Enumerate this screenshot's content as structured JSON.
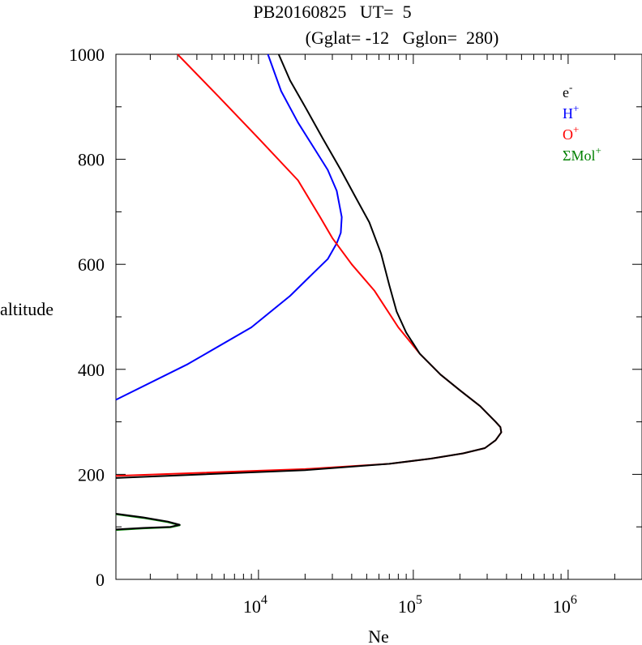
{
  "chart_data": {
    "type": "line",
    "title": "PB20160825   UT=  5",
    "subtitle": "(Gglat= -12   Gglon=  280)",
    "xlabel": "Ne",
    "ylabel": "altitude",
    "x_scale": "log",
    "xlim": [
      1200,
      3000000
    ],
    "ylim": [
      0,
      1000
    ],
    "x_ticks": [
      {
        "value": 10000,
        "base": "10",
        "exp": "4"
      },
      {
        "value": 100000,
        "base": "10",
        "exp": "5"
      },
      {
        "value": 1000000,
        "base": "10",
        "exp": "6"
      }
    ],
    "y_ticks": [
      {
        "value": 0,
        "label": "0"
      },
      {
        "value": 200,
        "label": "200"
      },
      {
        "value": 400,
        "label": "400"
      },
      {
        "value": 600,
        "label": "600"
      },
      {
        "value": 800,
        "label": "800"
      },
      {
        "value": 1000,
        "label": "1000"
      }
    ],
    "legend": {
      "placement": "top-right",
      "items": [
        {
          "base": "e",
          "sup": "-",
          "color": "#000000"
        },
        {
          "base": "H",
          "sup": "+",
          "color": "#0000ff"
        },
        {
          "base": "O",
          "sup": "+",
          "color": "#ff0000"
        },
        {
          "base": "ΣMol",
          "sup": "+",
          "color": "#008000"
        }
      ]
    },
    "series": [
      {
        "color": "#ff0000",
        "points": [
          [
            1200,
            197
          ],
          [
            20000,
            210
          ],
          [
            70000,
            220
          ],
          [
            130000,
            230
          ],
          [
            210000,
            240
          ],
          [
            290000,
            250
          ],
          [
            340000,
            265
          ],
          [
            370000,
            280
          ],
          [
            365000,
            290
          ],
          [
            340000,
            300
          ],
          [
            270000,
            330
          ],
          [
            200000,
            360
          ],
          [
            150000,
            390
          ],
          [
            110000,
            430
          ],
          [
            80000,
            480
          ],
          [
            56000,
            550
          ],
          [
            40000,
            600
          ],
          [
            30000,
            650
          ],
          [
            25000,
            690
          ],
          [
            18000,
            760
          ],
          [
            10000,
            840
          ],
          [
            5500,
            920
          ],
          [
            3000,
            1000
          ]
        ]
      },
      {
        "color": "#0000ff",
        "points": [
          [
            1200,
            342
          ],
          [
            3500,
            410
          ],
          [
            9000,
            480
          ],
          [
            16000,
            540
          ],
          [
            22000,
            580
          ],
          [
            28000,
            610
          ],
          [
            32000,
            640
          ],
          [
            34000,
            660
          ],
          [
            34500,
            690
          ],
          [
            32000,
            740
          ],
          [
            28000,
            780
          ],
          [
            23000,
            820
          ],
          [
            18000,
            870
          ],
          [
            14000,
            930
          ],
          [
            11500,
            1000
          ]
        ]
      },
      {
        "color": "#000000",
        "points": [
          [
            1200,
            193
          ],
          [
            20000,
            208
          ],
          [
            70000,
            220
          ],
          [
            130000,
            230
          ],
          [
            210000,
            240
          ],
          [
            290000,
            250
          ],
          [
            340000,
            265
          ],
          [
            370000,
            280
          ],
          [
            365000,
            290
          ],
          [
            340000,
            300
          ],
          [
            270000,
            330
          ],
          [
            200000,
            360
          ],
          [
            150000,
            390
          ],
          [
            110000,
            430
          ],
          [
            90000,
            470
          ],
          [
            78000,
            510
          ],
          [
            70000,
            560
          ],
          [
            62000,
            620
          ],
          [
            52000,
            680
          ],
          [
            42000,
            730
          ],
          [
            34000,
            780
          ],
          [
            26000,
            840
          ],
          [
            20000,
            900
          ],
          [
            16000,
            950
          ],
          [
            13500,
            1000
          ]
        ]
      },
      {
        "color": "#000000",
        "points": [
          [
            1200,
            125
          ],
          [
            1800,
            118
          ],
          [
            2600,
            110
          ],
          [
            3100,
            104
          ],
          [
            2700,
            100
          ],
          [
            1800,
            98
          ],
          [
            1200,
            95
          ]
        ]
      },
      {
        "color": "#008000",
        "points": [
          [
            1200,
            124
          ],
          [
            1800,
            117
          ],
          [
            2600,
            109
          ],
          [
            3100,
            103
          ],
          [
            2700,
            99
          ],
          [
            1800,
            97
          ],
          [
            1200,
            94
          ]
        ]
      }
    ]
  }
}
